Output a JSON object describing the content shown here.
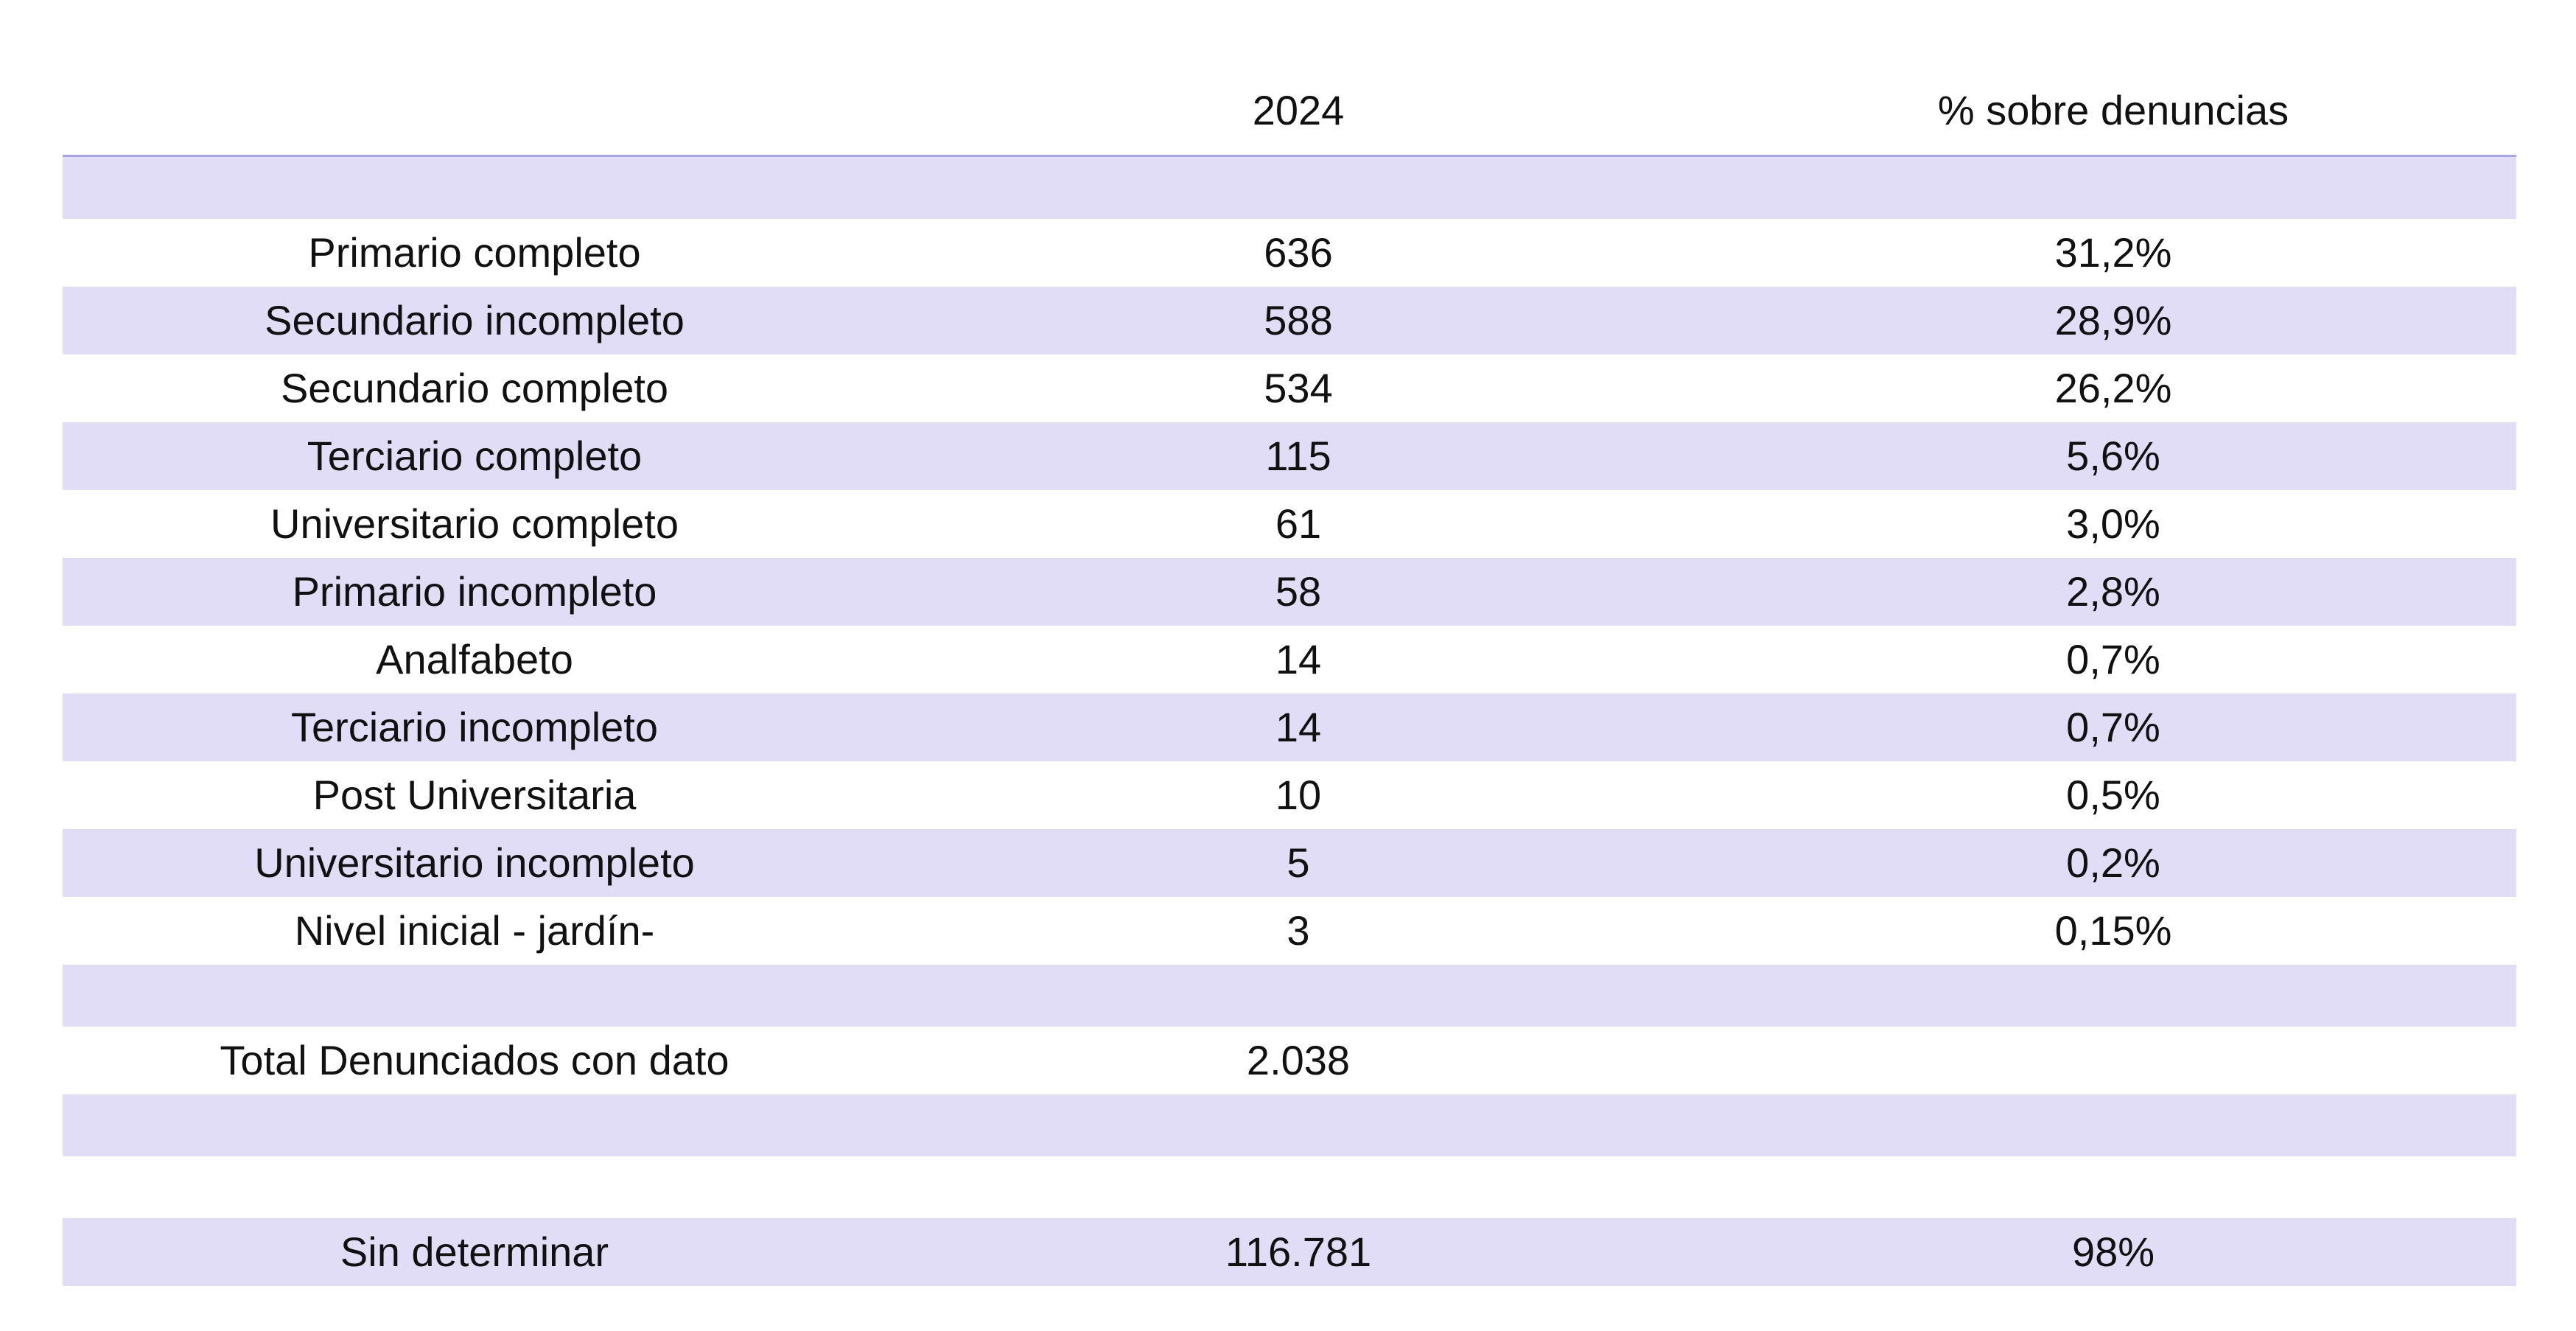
{
  "header": {
    "col_label": "",
    "col_year": "2024",
    "col_pct": "% sobre denuncias"
  },
  "rows": [
    {
      "label": "Primario completo",
      "count": "636",
      "pct": "31,2%"
    },
    {
      "label": "Secundario incompleto",
      "count": "588",
      "pct": "28,9%"
    },
    {
      "label": "Secundario completo",
      "count": "534",
      "pct": "26,2%"
    },
    {
      "label": "Terciario completo",
      "count": "115",
      "pct": "5,6%"
    },
    {
      "label": "Universitario completo",
      "count": "61",
      "pct": "3,0%"
    },
    {
      "label": "Primario incompleto",
      "count": "58",
      "pct": "2,8%"
    },
    {
      "label": "Analfabeto",
      "count": "14",
      "pct": "0,7%"
    },
    {
      "label": "Terciario incompleto",
      "count": "14",
      "pct": "0,7%"
    },
    {
      "label": "Post Universitaria",
      "count": "10",
      "pct": "0,5%"
    },
    {
      "label": "Universitario incompleto",
      "count": "5",
      "pct": "0,2%"
    },
    {
      "label": "Nivel inicial - jardín-",
      "count": "3",
      "pct": "0,15%"
    }
  ],
  "total": {
    "label": "Total Denunciados con dato",
    "count": "2.038",
    "pct": ""
  },
  "undetermined": {
    "label": "Sin determinar",
    "count": "116.781",
    "pct": "98%"
  },
  "colors": {
    "band": "#e1ddf6",
    "rule": "#a9a3e6"
  }
}
